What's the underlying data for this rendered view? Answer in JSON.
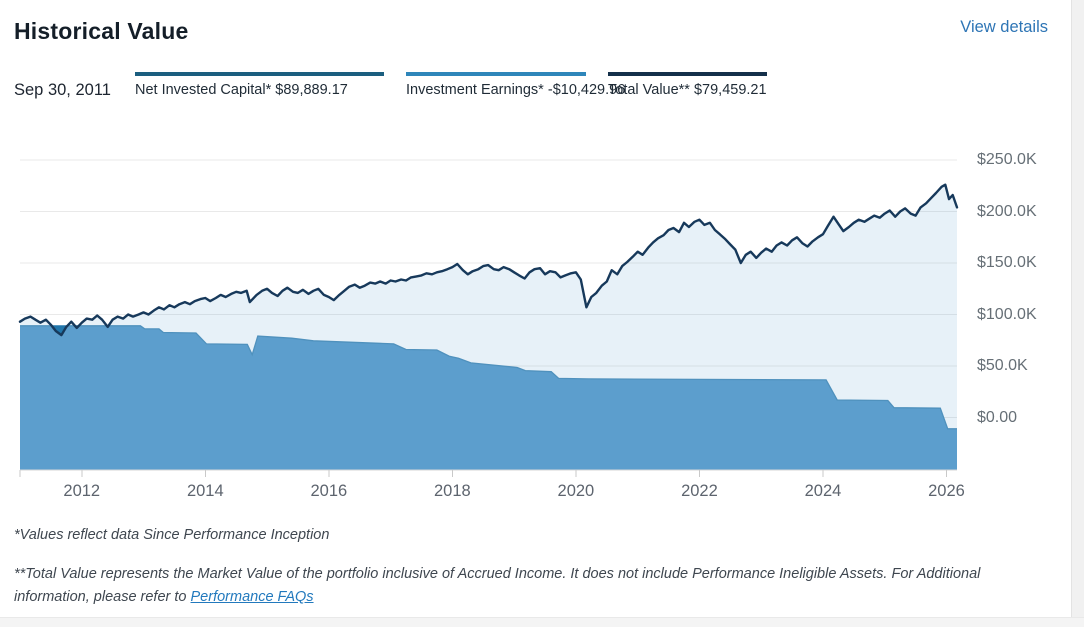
{
  "header": {
    "title": "Historical Value",
    "view_details_label": "View details"
  },
  "legend": {
    "date": "Sep 30, 2011",
    "items": [
      {
        "label": "Net Invested Capital*",
        "value": "$89,889.17",
        "color": "#1b5e7f"
      },
      {
        "label": "Investment Earnings*",
        "value": "-$10,429.96",
        "color": "#2e86ba"
      },
      {
        "label": "Total Value**",
        "value": "$79,459.21",
        "color": "#14304a"
      }
    ]
  },
  "chart_data": {
    "type": "area",
    "title": "Historical Value",
    "xlabel": "",
    "ylabel": "",
    "units": "USD thousands",
    "xlim": [
      2011,
      2026.17
    ],
    "ylim": [
      -50,
      287
    ],
    "grid": "horizontal",
    "legend_position": "top",
    "x_ticks": [
      2012,
      2014,
      2016,
      2018,
      2020,
      2022,
      2024,
      2026
    ],
    "x_tick_labels": [
      "2012",
      "2014",
      "2016",
      "2018",
      "2020",
      "2022",
      "2024",
      "2026"
    ],
    "y_ticks": [
      {
        "value": 250,
        "label": "$250.0K"
      },
      {
        "value": 200,
        "label": "$200.0K"
      },
      {
        "value": 150,
        "label": "$150.0K"
      },
      {
        "value": 100,
        "label": "$100.0K"
      },
      {
        "value": 50,
        "label": "$50.0K"
      },
      {
        "value": 0,
        "label": "$0.00"
      }
    ],
    "colors": {
      "total_value_line": "#17395b",
      "total_value_fill": "rgba(92,158,205,0.15)",
      "net_invested_fill": "#5c9ecd",
      "net_invested_edge": "#4f91bd",
      "overlap_fill": "#2176ab",
      "gridline": "#e9e9e9",
      "axis_line": "#d6d6d6",
      "tick": "#c9c9c9"
    },
    "series": [
      {
        "name": "Total Value",
        "points": [
          [
            2011.0,
            93
          ],
          [
            2011.08,
            96
          ],
          [
            2011.17,
            98
          ],
          [
            2011.25,
            95
          ],
          [
            2011.33,
            92
          ],
          [
            2011.42,
            95
          ],
          [
            2011.5,
            90
          ],
          [
            2011.58,
            84
          ],
          [
            2011.67,
            80
          ],
          [
            2011.75,
            88
          ],
          [
            2011.83,
            93
          ],
          [
            2011.92,
            87
          ],
          [
            2012.0,
            92
          ],
          [
            2012.08,
            96
          ],
          [
            2012.17,
            95
          ],
          [
            2012.25,
            99
          ],
          [
            2012.33,
            95
          ],
          [
            2012.42,
            88
          ],
          [
            2012.5,
            95
          ],
          [
            2012.58,
            98
          ],
          [
            2012.67,
            96
          ],
          [
            2012.75,
            100
          ],
          [
            2012.83,
            98
          ],
          [
            2012.92,
            100
          ],
          [
            2013.0,
            102
          ],
          [
            2013.08,
            100
          ],
          [
            2013.17,
            104
          ],
          [
            2013.25,
            107
          ],
          [
            2013.33,
            105
          ],
          [
            2013.42,
            109
          ],
          [
            2013.5,
            107
          ],
          [
            2013.58,
            110
          ],
          [
            2013.67,
            112
          ],
          [
            2013.75,
            110
          ],
          [
            2013.83,
            113
          ],
          [
            2013.92,
            115
          ],
          [
            2014.0,
            116
          ],
          [
            2014.08,
            113
          ],
          [
            2014.17,
            116
          ],
          [
            2014.25,
            119
          ],
          [
            2014.33,
            117
          ],
          [
            2014.42,
            120
          ],
          [
            2014.5,
            122
          ],
          [
            2014.58,
            121
          ],
          [
            2014.67,
            123
          ],
          [
            2014.72,
            112
          ],
          [
            2014.83,
            119
          ],
          [
            2014.92,
            123
          ],
          [
            2015.0,
            125
          ],
          [
            2015.08,
            121
          ],
          [
            2015.17,
            118
          ],
          [
            2015.25,
            123
          ],
          [
            2015.33,
            126
          ],
          [
            2015.42,
            122
          ],
          [
            2015.5,
            121
          ],
          [
            2015.58,
            124
          ],
          [
            2015.67,
            120
          ],
          [
            2015.75,
            123
          ],
          [
            2015.83,
            125
          ],
          [
            2015.92,
            119
          ],
          [
            2016.0,
            117
          ],
          [
            2016.08,
            114
          ],
          [
            2016.17,
            119
          ],
          [
            2016.25,
            123
          ],
          [
            2016.33,
            127
          ],
          [
            2016.42,
            129
          ],
          [
            2016.5,
            126
          ],
          [
            2016.58,
            128
          ],
          [
            2016.67,
            131
          ],
          [
            2016.75,
            130
          ],
          [
            2016.83,
            132
          ],
          [
            2016.92,
            130
          ],
          [
            2017.0,
            133
          ],
          [
            2017.08,
            132
          ],
          [
            2017.17,
            134
          ],
          [
            2017.25,
            133
          ],
          [
            2017.33,
            136
          ],
          [
            2017.42,
            137
          ],
          [
            2017.5,
            138
          ],
          [
            2017.58,
            140
          ],
          [
            2017.67,
            139
          ],
          [
            2017.75,
            141
          ],
          [
            2017.83,
            142
          ],
          [
            2017.92,
            144
          ],
          [
            2018.0,
            146
          ],
          [
            2018.08,
            149
          ],
          [
            2018.17,
            143
          ],
          [
            2018.25,
            139
          ],
          [
            2018.33,
            142
          ],
          [
            2018.42,
            144
          ],
          [
            2018.5,
            147
          ],
          [
            2018.58,
            148
          ],
          [
            2018.67,
            144
          ],
          [
            2018.75,
            143
          ],
          [
            2018.83,
            146
          ],
          [
            2018.92,
            144
          ],
          [
            2019.0,
            141
          ],
          [
            2019.08,
            138
          ],
          [
            2019.17,
            135
          ],
          [
            2019.25,
            141
          ],
          [
            2019.33,
            144
          ],
          [
            2019.42,
            145
          ],
          [
            2019.5,
            139
          ],
          [
            2019.58,
            142
          ],
          [
            2019.67,
            141
          ],
          [
            2019.75,
            136
          ],
          [
            2019.83,
            138
          ],
          [
            2019.92,
            140
          ],
          [
            2020.0,
            141
          ],
          [
            2020.08,
            134
          ],
          [
            2020.17,
            107
          ],
          [
            2020.25,
            117
          ],
          [
            2020.33,
            121
          ],
          [
            2020.42,
            128
          ],
          [
            2020.5,
            132
          ],
          [
            2020.58,
            143
          ],
          [
            2020.67,
            139
          ],
          [
            2020.75,
            147
          ],
          [
            2020.83,
            151
          ],
          [
            2020.92,
            156
          ],
          [
            2021.0,
            161
          ],
          [
            2021.08,
            158
          ],
          [
            2021.17,
            165
          ],
          [
            2021.25,
            170
          ],
          [
            2021.33,
            174
          ],
          [
            2021.42,
            177
          ],
          [
            2021.5,
            182
          ],
          [
            2021.58,
            184
          ],
          [
            2021.67,
            180
          ],
          [
            2021.75,
            189
          ],
          [
            2021.83,
            185
          ],
          [
            2021.92,
            190
          ],
          [
            2022.0,
            192
          ],
          [
            2022.08,
            187
          ],
          [
            2022.17,
            189
          ],
          [
            2022.25,
            182
          ],
          [
            2022.33,
            178
          ],
          [
            2022.42,
            173
          ],
          [
            2022.5,
            168
          ],
          [
            2022.58,
            163
          ],
          [
            2022.67,
            150
          ],
          [
            2022.75,
            158
          ],
          [
            2022.83,
            161
          ],
          [
            2022.92,
            155
          ],
          [
            2023.0,
            160
          ],
          [
            2023.08,
            164
          ],
          [
            2023.17,
            161
          ],
          [
            2023.25,
            167
          ],
          [
            2023.33,
            170
          ],
          [
            2023.42,
            167
          ],
          [
            2023.5,
            172
          ],
          [
            2023.58,
            175
          ],
          [
            2023.67,
            169
          ],
          [
            2023.75,
            166
          ],
          [
            2023.83,
            171
          ],
          [
            2023.92,
            175
          ],
          [
            2024.0,
            178
          ],
          [
            2024.08,
            186
          ],
          [
            2024.17,
            195
          ],
          [
            2024.25,
            188
          ],
          [
            2024.33,
            181
          ],
          [
            2024.42,
            185
          ],
          [
            2024.5,
            189
          ],
          [
            2024.58,
            192
          ],
          [
            2024.67,
            190
          ],
          [
            2024.75,
            193
          ],
          [
            2024.83,
            196
          ],
          [
            2024.92,
            194
          ],
          [
            2025.0,
            198
          ],
          [
            2025.08,
            201
          ],
          [
            2025.17,
            195
          ],
          [
            2025.25,
            200
          ],
          [
            2025.33,
            203
          ],
          [
            2025.42,
            198
          ],
          [
            2025.5,
            196
          ],
          [
            2025.58,
            204
          ],
          [
            2025.67,
            208
          ],
          [
            2025.75,
            213
          ],
          [
            2025.83,
            218
          ],
          [
            2025.92,
            224
          ],
          [
            2025.98,
            226
          ],
          [
            2026.04,
            212
          ],
          [
            2026.1,
            216
          ],
          [
            2026.17,
            204
          ]
        ]
      },
      {
        "name": "Net Invested Capital",
        "points": [
          [
            2011.0,
            89
          ],
          [
            2012.95,
            89
          ],
          [
            2013.02,
            86
          ],
          [
            2013.25,
            86
          ],
          [
            2013.32,
            82.5
          ],
          [
            2013.85,
            82
          ],
          [
            2014.02,
            71.5
          ],
          [
            2014.68,
            71
          ],
          [
            2014.76,
            61
          ],
          [
            2014.85,
            79
          ],
          [
            2015.4,
            77
          ],
          [
            2015.75,
            74.5
          ],
          [
            2016.6,
            72.5
          ],
          [
            2017.05,
            71.5
          ],
          [
            2017.25,
            66
          ],
          [
            2017.75,
            65.5
          ],
          [
            2017.95,
            59.5
          ],
          [
            2018.1,
            57.5
          ],
          [
            2018.3,
            53
          ],
          [
            2019.05,
            48.5
          ],
          [
            2019.18,
            45.5
          ],
          [
            2019.6,
            44.5
          ],
          [
            2019.72,
            38
          ],
          [
            2020.2,
            37.5
          ],
          [
            2024.05,
            36.5
          ],
          [
            2024.23,
            17
          ],
          [
            2025.05,
            16.5
          ],
          [
            2025.15,
            9.5
          ],
          [
            2025.9,
            9
          ],
          [
            2026.02,
            -11
          ],
          [
            2026.17,
            -11
          ]
        ]
      }
    ]
  },
  "footnotes": {
    "line1": "*Values reflect data Since Performance Inception",
    "line2a": "**Total Value represents the Market Value of the portfolio inclusive of Accrued Income. It does not include Performance Ineligible Assets. For Additional",
    "line2b": "information, please refer to ",
    "link_label": "Performance FAQs"
  }
}
